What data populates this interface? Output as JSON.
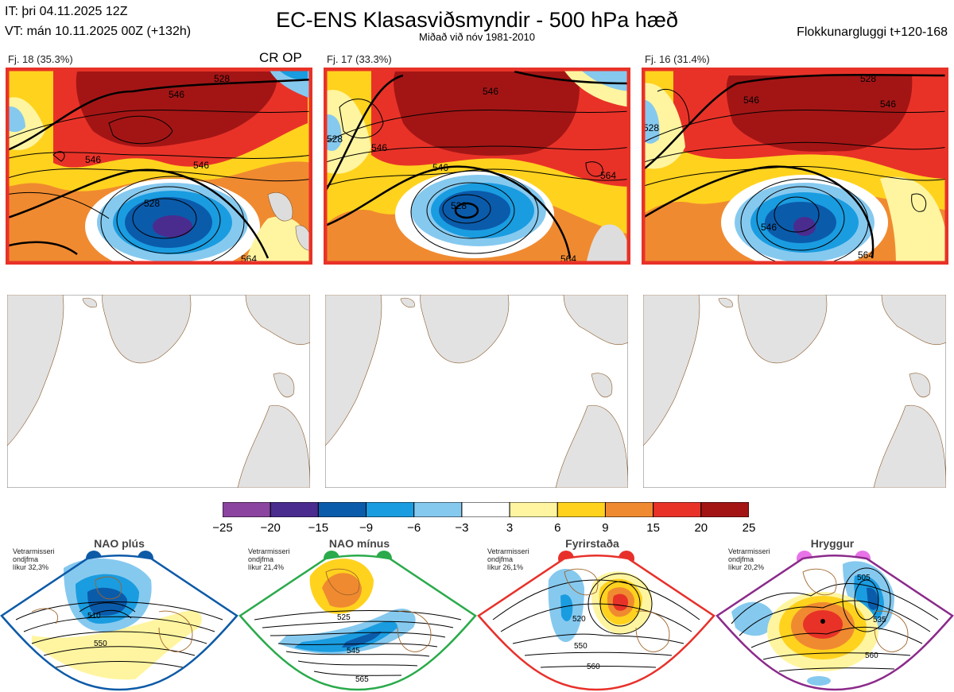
{
  "header": {
    "it_line": "IT: þri 04.11.2025 12Z",
    "vt_line": "VT: mán 10.11.2025 00Z  (+132h)",
    "title": "EC-ENS Klasasviðsmyndir - 500 hPa hæð",
    "subtitle": "Miðað við nóv 1981-2010",
    "window": "Flokkunargluggi t+120-168"
  },
  "clusters": [
    {
      "label": "Fj. 18 (35.3%)",
      "tag": "CR OP",
      "contours": [
        "546",
        "546",
        "528",
        "546",
        "564",
        "528"
      ]
    },
    {
      "label": "Fj. 17 (33.3%)",
      "tag": "",
      "contours": [
        "546",
        "546",
        "528",
        "528",
        "546",
        "564",
        "564"
      ]
    },
    {
      "label": "Fj. 16 (31.4%)",
      "tag": "",
      "contours": [
        "546",
        "528",
        "546",
        "528",
        "546",
        "564"
      ]
    }
  ],
  "colorbar": {
    "colors": [
      "#8b44a0",
      "#4a2c8f",
      "#0b5bab",
      "#1a9ce0",
      "#86c9ef",
      "#ffffff",
      "#fff5a0",
      "#ffd21e",
      "#f08a30",
      "#e83228",
      "#a31515"
    ],
    "ticks": [
      "−25",
      "−20",
      "−15",
      "−9",
      "−6",
      "−3",
      "3",
      "6",
      "9",
      "15",
      "20",
      "25"
    ]
  },
  "climate_regimes": [
    {
      "name": "NAO plús",
      "note": [
        "Vetrarmisseri",
        "ondjfma",
        "líkur 32,3%"
      ],
      "dot_color": "#0d5aa7",
      "border_color": "#0d5aa7",
      "contours": [
        "510",
        "550"
      ]
    },
    {
      "name": "NAO mínus",
      "note": [
        "Vetrarmisseri",
        "ondjfma",
        "líkur 21,4%"
      ],
      "dot_color": "#2aaa4a",
      "border_color": "#2aaa4a",
      "contours": [
        "525",
        "545",
        "565"
      ]
    },
    {
      "name": "Fyrirstaða",
      "note": [
        "Vetrarmisseri",
        "ondjfma",
        "líkur 26,1%"
      ],
      "dot_color": "#e8302a",
      "border_color": "#e8302a",
      "contours": [
        "520",
        "550",
        "560"
      ]
    },
    {
      "name": "Hryggur",
      "note": [
        "Vetrarmisseri",
        "ondjfma",
        "líkur 20,2%"
      ],
      "dot_color": "#e873e8",
      "border_color": "#8b2a8b",
      "contours": [
        "505",
        "535",
        "560"
      ]
    }
  ]
}
